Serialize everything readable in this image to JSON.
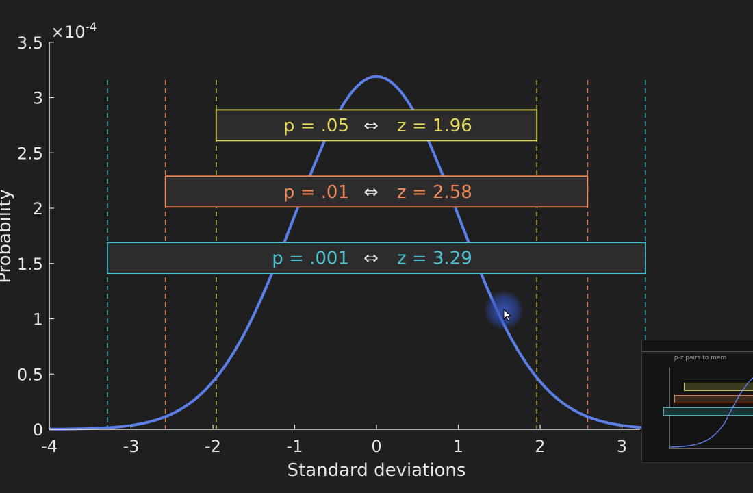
{
  "chart_data": {
    "type": "line",
    "title": "",
    "xlabel": "Standard deviations",
    "ylabel": "Probability",
    "y_exponent_label": "×10",
    "y_exponent_power": "-4",
    "xlim": [
      -4,
      3.25
    ],
    "ylim": [
      0,
      3.5
    ],
    "x_ticks": [
      "-4",
      "-3",
      "-2",
      "-1",
      "0",
      "1",
      "2",
      "3"
    ],
    "y_ticks": [
      "0",
      "0.5",
      "1",
      "1.5",
      "2",
      "2.5",
      "3",
      "3.5"
    ],
    "grid": false,
    "series": [
      {
        "color": "#5b7fe6",
        "curve": "standard normal density scaled to peak 3.19e-4",
        "peak_x": 0,
        "peak_y": 3.19,
        "x": [
          -4,
          -3.5,
          -3,
          -2.5,
          -2,
          -1.5,
          -1,
          -0.5,
          0,
          0.5,
          1,
          1.5,
          2,
          2.5,
          3,
          3.25
        ],
        "y": [
          0.003,
          0.018,
          0.035,
          0.14,
          0.43,
          1.04,
          1.93,
          2.82,
          3.19,
          2.82,
          1.93,
          1.04,
          0.43,
          0.14,
          0.035,
          0.018
        ]
      }
    ],
    "vlines": [
      {
        "x": -1.96,
        "color": "#c9c24a"
      },
      {
        "x": 1.96,
        "color": "#c9c24a"
      },
      {
        "x": -2.58,
        "color": "#e07a50"
      },
      {
        "x": 2.58,
        "color": "#e07a50"
      },
      {
        "x": -3.29,
        "color": "#3fb2c4"
      },
      {
        "x": 3.29,
        "color": "#3fb2c4"
      }
    ],
    "annotations": [
      {
        "p": "p = .05",
        "arrow": "⇔",
        "z": "z = 1.96",
        "x_from": -1.96,
        "x_to": 1.96,
        "y": 2.75,
        "color": "#e6dc5a"
      },
      {
        "p": "p = .01",
        "arrow": "⇔",
        "z": "z = 2.58",
        "x_from": -2.58,
        "x_to": 2.58,
        "y": 2.15,
        "color": "#f08a5a"
      },
      {
        "p": "p = .001",
        "arrow": "⇔",
        "z": "z = 3.29",
        "x_from": -3.29,
        "x_to": 3.29,
        "y": 1.55,
        "color": "#4cc0d2"
      }
    ]
  },
  "thumbnail": {
    "title": "p-z pairs to mem"
  },
  "colors": {
    "background": "#1f1f1f",
    "axis": "#e6e6e6",
    "curve": "#5b7fe6",
    "annotation_fill": "#2c2c2c"
  }
}
